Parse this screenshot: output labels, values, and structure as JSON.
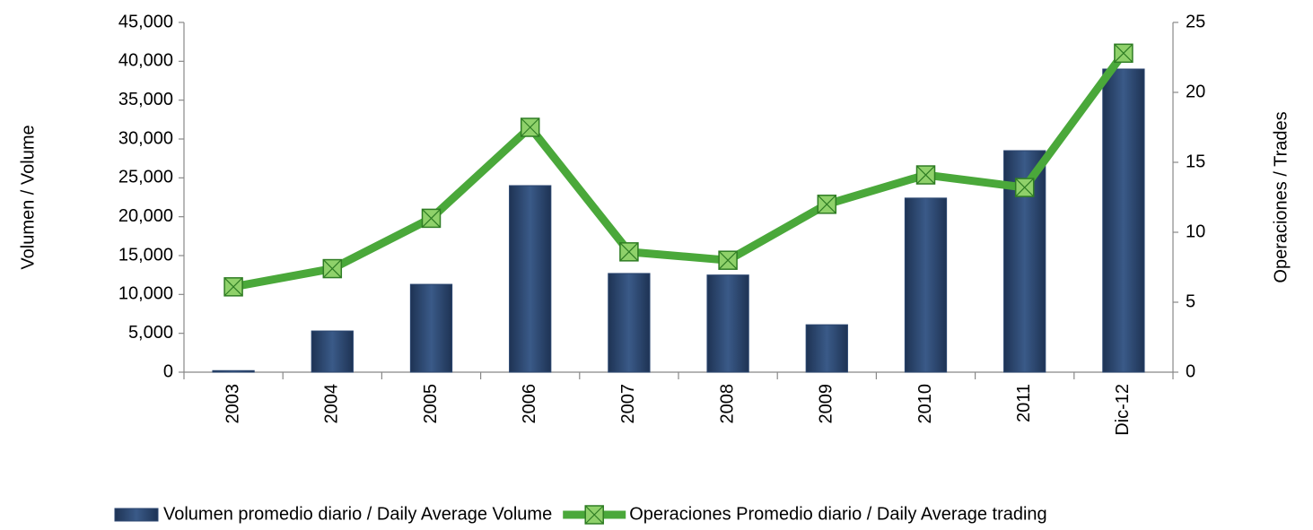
{
  "chart_data": {
    "type": "bar_line",
    "categories": [
      "2003",
      "2004",
      "2005",
      "2006",
      "2007",
      "2008",
      "2009",
      "2010",
      "2011",
      "Dic-12"
    ],
    "series": [
      {
        "name": "Volumen promedio diario / Daily Average Volume",
        "type": "bar",
        "color": "#2b4670",
        "values": [
          200,
          5300,
          11300,
          24000,
          12700,
          12500,
          6100,
          22400,
          28500,
          39000
        ]
      },
      {
        "name": "Operaciones Promedio diario / Daily Average trading",
        "type": "line",
        "axis": "y2",
        "color": "#4aa83a",
        "values": [
          6.1,
          7.4,
          11.0,
          17.5,
          8.6,
          8.0,
          12.0,
          14.1,
          13.2,
          22.8
        ]
      }
    ],
    "ylabel": "Volumen / Volume",
    "y2label": "Operaciones / Trades",
    "ylim": [
      0,
      45000
    ],
    "yticks": [
      0,
      {
        "value": 5000,
        "label": "5,000"
      },
      {
        "value": 10000,
        "label": "10,000"
      },
      {
        "value": 15000,
        "label": "15,000"
      },
      {
        "value": 20000,
        "label": "20,000"
      },
      {
        "value": 25000,
        "label": "25,000"
      },
      {
        "value": 30000,
        "label": "30,000"
      },
      {
        "value": 35000,
        "label": "35,000"
      },
      {
        "value": 40000,
        "label": "40,000"
      },
      {
        "value": 45000,
        "label": "45,000"
      }
    ],
    "y2lim": [
      0,
      25
    ],
    "y2ticks": [
      0,
      5,
      10,
      15,
      20,
      25
    ],
    "legend": "bottom"
  }
}
